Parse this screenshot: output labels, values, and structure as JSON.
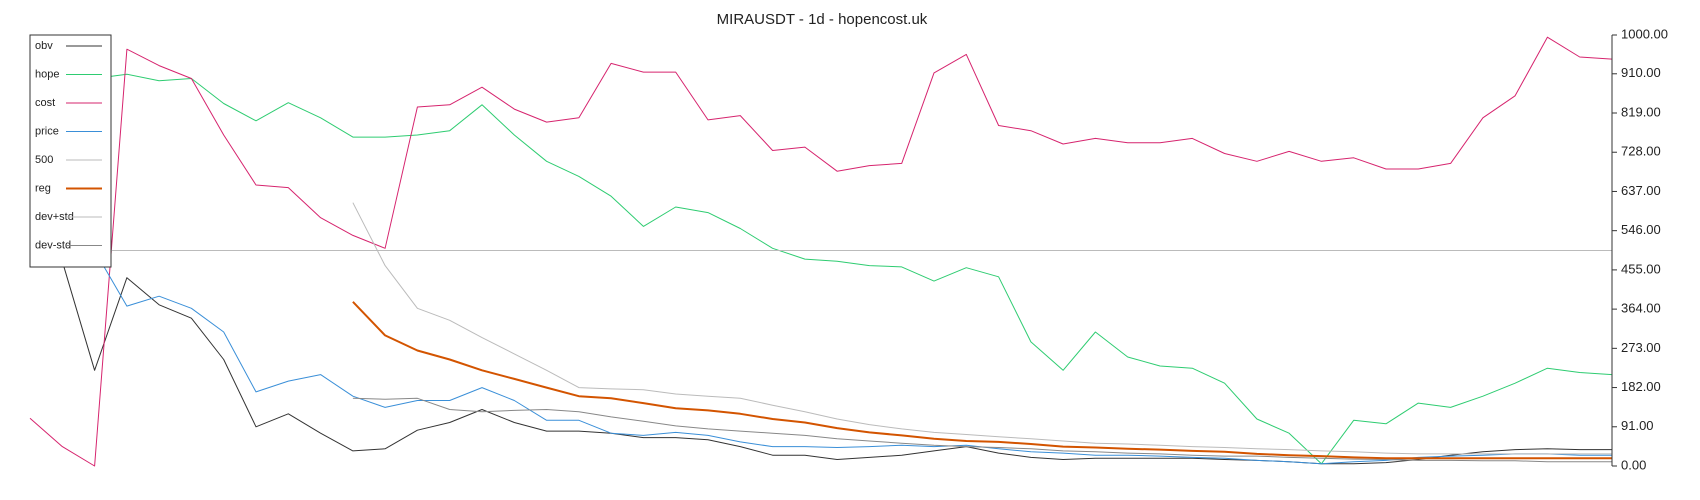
{
  "chart_data": {
    "type": "line",
    "title": "MIRAUSDT - 1d - hopencost.uk",
    "categories": [
      null,
      null,
      null,
      null,
      null,
      null,
      null,
      null,
      null,
      null,
      null,
      null,
      null,
      null,
      null,
      null,
      null,
      null,
      null,
      null,
      null,
      null,
      null,
      null,
      null,
      null,
      null,
      null,
      null,
      null,
      null,
      null,
      null,
      null,
      null,
      null,
      null,
      null,
      null,
      null,
      null,
      null,
      null,
      null,
      null,
      null,
      null,
      null,
      null,
      null
    ],
    "ylim": [
      0,
      1000
    ],
    "yticks": [
      {
        "value": 0,
        "label": "0.00"
      },
      {
        "value": 91,
        "label": "91.00"
      },
      {
        "value": 182,
        "label": "182.00"
      },
      {
        "value": 273,
        "label": "273.00"
      },
      {
        "value": 364,
        "label": "364.00"
      },
      {
        "value": 455,
        "label": "455.00"
      },
      {
        "value": 546,
        "label": "546.00"
      },
      {
        "value": 637,
        "label": "637.00"
      },
      {
        "value": 728,
        "label": "728.00"
      },
      {
        "value": 819,
        "label": "819.00"
      },
      {
        "value": 910,
        "label": "910.00"
      },
      {
        "value": 1000,
        "label": "1000.00"
      }
    ],
    "y_axis_side": "right",
    "grid": false,
    "legend": "upper left",
    "series": [
      {
        "name": "obv",
        "color": "#333333",
        "values": [
          626,
          475,
          222,
          437,
          374,
          343,
          247,
          91,
          121,
          76,
          35,
          40,
          83,
          101,
          131,
          101,
          81,
          81,
          76,
          66,
          66,
          61,
          45,
          25,
          25,
          15,
          20,
          25,
          35,
          45,
          30,
          20,
          15,
          18,
          18,
          18,
          18,
          15,
          13,
          10,
          5,
          5,
          8,
          15,
          25,
          33,
          38,
          40,
          38,
          38
        ]
      },
      {
        "name": "hope",
        "color": "#2ecc71",
        "values": [
          899,
          899,
          899,
          909,
          894,
          899,
          841,
          801,
          843,
          808,
          763,
          763,
          768,
          778,
          838,
          768,
          707,
          672,
          626,
          556,
          601,
          588,
          551,
          505,
          480,
          475,
          465,
          462,
          429,
          460,
          439,
          288,
          222,
          311,
          253,
          232,
          227,
          192,
          109,
          76,
          5,
          106,
          98,
          146,
          136,
          162,
          192,
          227,
          217,
          212
        ]
      },
      {
        "name": "cost",
        "color": "#d6246e",
        "values": [
          111,
          45,
          0,
          967,
          929,
          899,
          768,
          652,
          646,
          576,
          535,
          505,
          833,
          838,
          879,
          828,
          798,
          808,
          934,
          914,
          914,
          803,
          813,
          732,
          740,
          684,
          697,
          702,
          912,
          955,
          790,
          778,
          747,
          760,
          750,
          750,
          760,
          725,
          707,
          730,
          707,
          715,
          689,
          689,
          702,
          808,
          859,
          995,
          949,
          944
        ]
      },
      {
        "name": "price",
        "color": "#3a8fd8",
        "values": [
          650,
          576,
          500,
          371,
          394,
          366,
          311,
          172,
          197,
          212,
          162,
          136,
          152,
          152,
          182,
          152,
          106,
          106,
          76,
          71,
          78,
          71,
          56,
          45,
          45,
          43,
          45,
          48,
          45,
          48,
          40,
          33,
          30,
          25,
          25,
          23,
          20,
          18,
          13,
          10,
          5,
          10,
          13,
          20,
          23,
          25,
          28,
          28,
          25,
          25
        ]
      },
      {
        "name": "500",
        "color": "#bbbbbb",
        "values": [
          500,
          500,
          500,
          500,
          500,
          500,
          500,
          500,
          500,
          500,
          500,
          500,
          500,
          500,
          500,
          500,
          500,
          500,
          500,
          500,
          500,
          500,
          500,
          500,
          500,
          500,
          500,
          500,
          500,
          500,
          500,
          500,
          500,
          500,
          500,
          500,
          500,
          500,
          500,
          500,
          500,
          500,
          500,
          500,
          500,
          500,
          500,
          500,
          500,
          500
        ]
      },
      {
        "name": "reg",
        "color": "#d35400",
        "width": 2,
        "values": [
          null,
          null,
          null,
          null,
          null,
          null,
          null,
          null,
          null,
          null,
          381,
          303,
          268,
          247,
          222,
          202,
          182,
          162,
          157,
          146,
          134,
          129,
          121,
          109,
          101,
          88,
          78,
          71,
          63,
          58,
          56,
          51,
          45,
          43,
          40,
          38,
          35,
          33,
          28,
          25,
          23,
          20,
          18,
          18,
          18,
          18,
          18,
          18,
          18,
          18
        ]
      },
      {
        "name": "dev+std",
        "color": "#bbbbbb",
        "values": [
          null,
          null,
          null,
          null,
          null,
          null,
          null,
          null,
          null,
          null,
          611,
          465,
          366,
          338,
          298,
          260,
          222,
          182,
          179,
          177,
          167,
          162,
          157,
          141,
          126,
          109,
          96,
          86,
          78,
          73,
          68,
          63,
          58,
          53,
          51,
          48,
          45,
          43,
          40,
          38,
          35,
          33,
          30,
          28,
          28,
          28,
          28,
          28,
          28,
          28
        ]
      },
      {
        "name": "dev-std",
        "color": "#888888",
        "values": [
          null,
          null,
          null,
          null,
          null,
          null,
          null,
          null,
          null,
          null,
          157,
          155,
          157,
          131,
          126,
          129,
          131,
          126,
          114,
          104,
          93,
          86,
          81,
          76,
          71,
          63,
          58,
          53,
          48,
          45,
          43,
          40,
          35,
          33,
          30,
          28,
          25,
          23,
          23,
          20,
          18,
          16,
          15,
          13,
          13,
          12,
          12,
          10,
          10,
          10
        ]
      }
    ]
  }
}
